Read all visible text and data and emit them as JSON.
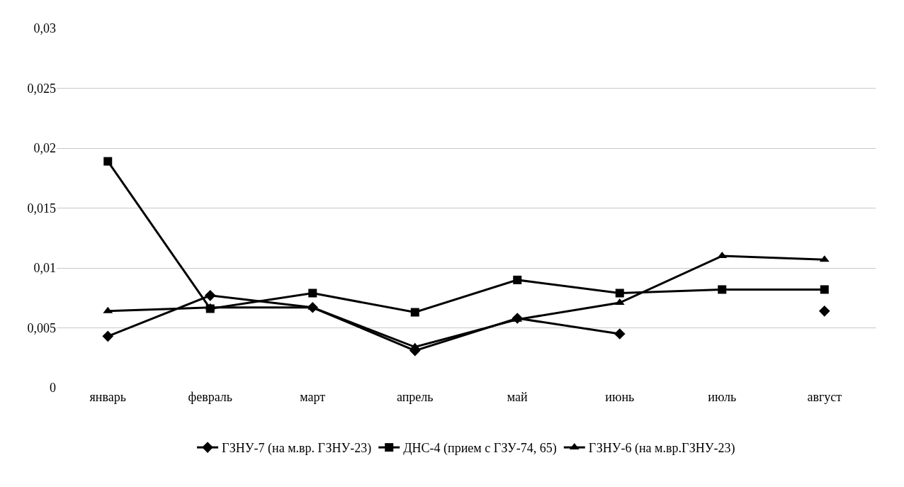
{
  "chart_data": {
    "type": "line",
    "categories": [
      "январь",
      "февраль",
      "март",
      "апрель",
      "май",
      "июнь",
      "июль",
      "август"
    ],
    "series": [
      {
        "name": "ГЗНУ-7 (на м.вр. ГЗНУ-23)",
        "color": "#000000",
        "marker": "diamond",
        "values": [
          0.0043,
          0.0077,
          0.0067,
          0.0031,
          0.0058,
          0.0045,
          null,
          0.0064
        ]
      },
      {
        "name": "ДНС-4 (прием с ГЗУ-74, 65)",
        "color": "#000000",
        "marker": "square",
        "values": [
          0.0189,
          0.0066,
          0.0079,
          0.0063,
          0.009,
          0.0079,
          0.0082,
          0.0082
        ]
      },
      {
        "name": "ГЗНУ-6 (на м.вр.ГЗНУ-23)",
        "color": "#000000",
        "marker": "triangle",
        "values": [
          0.0064,
          0.0067,
          0.0067,
          0.0034,
          0.0057,
          0.0071,
          0.011,
          0.0107
        ]
      }
    ],
    "ylim": [
      0,
      0.03
    ],
    "yticks": [
      {
        "value": 0,
        "label": "0"
      },
      {
        "value": 0.005,
        "label": "0,005"
      },
      {
        "value": 0.01,
        "label": "0,01"
      },
      {
        "value": 0.015,
        "label": "0,015"
      },
      {
        "value": 0.02,
        "label": "0,02"
      },
      {
        "value": 0.025,
        "label": "0,025"
      },
      {
        "value": 0.03,
        "label": "0,03"
      }
    ],
    "grid": "y",
    "legend": "bottom",
    "line_style": "solid"
  }
}
